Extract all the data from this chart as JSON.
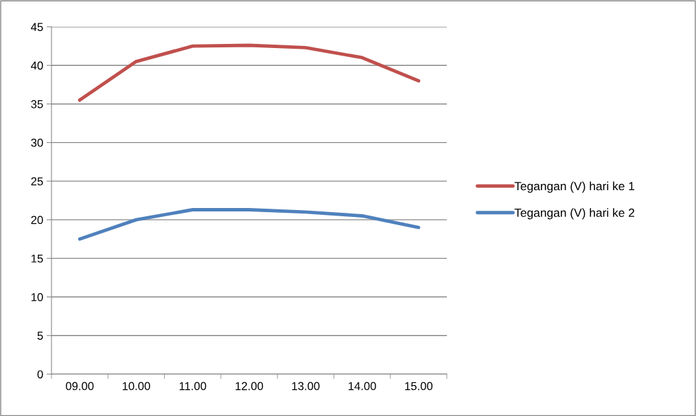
{
  "chart_data": {
    "type": "line",
    "categories": [
      "09.00",
      "10.00",
      "11.00",
      "12.00",
      "13.00",
      "14.00",
      "15.00"
    ],
    "series": [
      {
        "name": "Tegangan (V) hari ke 1",
        "color": "#c0504d",
        "values": [
          35.5,
          40.5,
          42.5,
          42.6,
          42.3,
          41.0,
          38.0
        ]
      },
      {
        "name": "Tegangan (V) hari ke 2",
        "color": "#4f81bd",
        "values": [
          17.5,
          20.0,
          21.3,
          21.3,
          21.0,
          20.5,
          19.0
        ]
      }
    ],
    "ylim": [
      0,
      45
    ],
    "yticks": [
      0,
      5,
      10,
      15,
      20,
      25,
      30,
      35,
      40,
      45
    ],
    "grid": "y",
    "legend": "right",
    "marker": "none",
    "line_style": "solid"
  }
}
